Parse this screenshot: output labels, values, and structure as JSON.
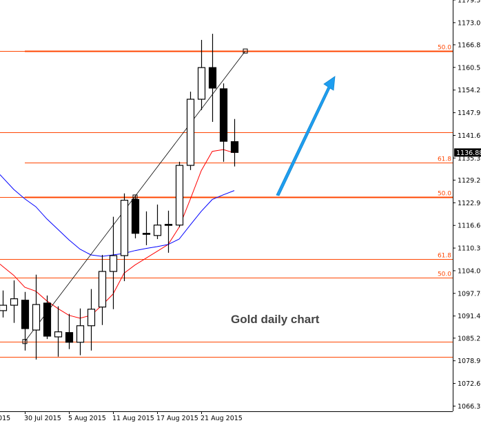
{
  "chart_data": {
    "type": "candlestick",
    "title": "",
    "annotation": "Gold daily chart",
    "colors": {
      "bull_body": "#ffffff",
      "bear_body": "#000000",
      "outline": "#000000",
      "ma_fast": "#ff0000",
      "ma_slow": "#0000ff",
      "levels": "#ff4500",
      "trendline": "#000000",
      "arrow": "#1e9ef0",
      "price_tag_bg": "#000000"
    },
    "ylim": [
      1064.9,
      1179.3
    ],
    "y_ticks": [
      "1179.30",
      "1173.00",
      "1166.85",
      "1160.55",
      "1154.25",
      "1147.95",
      "1141.65",
      "1135.35",
      "1129.20",
      "1122.90",
      "1116.60",
      "1110.30",
      "1104.00",
      "1097.70",
      "1091.40",
      "1085.25",
      "1078.95",
      "1072.65",
      "1066.35"
    ],
    "x_ticks": [
      {
        "label": "2015",
        "date": "24 Jul 2015"
      },
      {
        "label": "30 Jul 2015",
        "date": "30 Jul 2015"
      },
      {
        "label": "5 Aug 2015",
        "date": "5 Aug 2015"
      },
      {
        "label": "11 Aug 2015",
        "date": "11 Aug 2015"
      },
      {
        "label": "17 Aug 2015",
        "date": "17 Aug 2015"
      },
      {
        "label": "21 Aug 2015",
        "date": "21 Aug 2015"
      }
    ],
    "current_price": "1136.88",
    "candles": [
      {
        "date": "28 Jul 2015",
        "o": 1092.9,
        "h": 1098.5,
        "l": 1091.0,
        "c": 1094.4
      },
      {
        "date": "29 Jul 2015",
        "o": 1094.4,
        "h": 1101.3,
        "l": 1089.5,
        "c": 1096.2
      },
      {
        "date": "30 Jul 2015",
        "o": 1095.8,
        "h": 1098.1,
        "l": 1081.8,
        "c": 1087.9
      },
      {
        "date": "31 Jul 2015",
        "o": 1087.5,
        "h": 1102.9,
        "l": 1079.3,
        "c": 1094.6
      },
      {
        "date": "3 Aug 2015",
        "o": 1095.0,
        "h": 1097.1,
        "l": 1085.0,
        "c": 1085.8
      },
      {
        "date": "4 Aug 2015",
        "o": 1085.6,
        "h": 1094.1,
        "l": 1080.1,
        "c": 1087.0
      },
      {
        "date": "5 Aug 2015",
        "o": 1086.8,
        "h": 1092.0,
        "l": 1082.2,
        "c": 1084.1
      },
      {
        "date": "6 Aug 2015",
        "o": 1084.1,
        "h": 1093.5,
        "l": 1080.5,
        "c": 1088.7
      },
      {
        "date": "7 Aug 2015",
        "o": 1088.7,
        "h": 1098.9,
        "l": 1081.8,
        "c": 1093.3
      },
      {
        "date": "10 Aug 2015",
        "o": 1093.9,
        "h": 1108.4,
        "l": 1088.9,
        "c": 1103.8
      },
      {
        "date": "11 Aug 2015",
        "o": 1103.8,
        "h": 1119.0,
        "l": 1093.3,
        "c": 1108.2
      },
      {
        "date": "12 Aug 2015",
        "o": 1108.2,
        "h": 1125.5,
        "l": 1101.1,
        "c": 1123.6
      },
      {
        "date": "13 Aug 2015",
        "o": 1123.8,
        "h": 1124.9,
        "l": 1113.0,
        "c": 1114.4
      },
      {
        "date": "14 Aug 2015",
        "o": 1114.4,
        "h": 1120.5,
        "l": 1111.1,
        "c": 1114.3
      },
      {
        "date": "17 Aug 2015",
        "o": 1113.8,
        "h": 1122.4,
        "l": 1112.8,
        "c": 1116.7
      },
      {
        "date": "18 Aug 2015",
        "o": 1116.9,
        "h": 1120.7,
        "l": 1109.0,
        "c": 1116.8
      },
      {
        "date": "19 Aug 2015",
        "o": 1116.7,
        "h": 1134.3,
        "l": 1116.1,
        "c": 1133.3
      },
      {
        "date": "20 Aug 2015",
        "o": 1133.3,
        "h": 1153.8,
        "l": 1132.0,
        "c": 1151.7
      },
      {
        "date": "21 Aug 2015",
        "o": 1151.7,
        "h": 1168.2,
        "l": 1148.7,
        "c": 1160.5
      },
      {
        "date": "24 Aug 2015",
        "o": 1160.5,
        "h": 1169.9,
        "l": 1145.4,
        "c": 1154.8
      },
      {
        "date": "25 Aug 2015",
        "o": 1154.6,
        "h": 1156.1,
        "l": 1134.3,
        "c": 1140.0
      },
      {
        "date": "26 Aug 2015",
        "o": 1139.9,
        "h": 1146.2,
        "l": 1133.0,
        "c": 1136.9
      }
    ],
    "series": [
      {
        "values": [
          1105.2,
          1102.7,
          1099.4,
          1098.3,
          1095.6,
          1093.5,
          1091.6,
          1090.8,
          1091.6,
          1094.4,
          1097.5,
          1103.3,
          1105.6,
          1107.5,
          1109.4,
          1111.3,
          1116.1,
          1123.8,
          1131.8,
          1137.2,
          1137.7,
          1136.8
        ],
        "color": "#ff0000"
      },
      {
        "values": [
          1129.9,
          1126.6,
          1124.0,
          1121.8,
          1118.4,
          1115.5,
          1112.6,
          1110.0,
          1108.4,
          1108.0,
          1108.4,
          1108.8,
          1109.6,
          1110.2,
          1110.7,
          1111.3,
          1112.8,
          1116.7,
          1120.5,
          1123.8,
          1125.1,
          1126.3
        ],
        "color": "#0000ff"
      }
    ],
    "levels": [
      {
        "price": 1165.1,
        "label": "50.0",
        "from": "30 Jul 2015",
        "thick": true
      },
      {
        "price": 1142.5,
        "label": "",
        "from": null,
        "thick": false
      },
      {
        "price": 1134.1,
        "label": "61.8",
        "from": "30 Jul 2015",
        "thick": false
      },
      {
        "price": 1124.5,
        "label": "50.0",
        "from": "30 Jul 2015",
        "thick": true
      },
      {
        "price": 1107.3,
        "label": "61.8",
        "from": null,
        "thick": false
      },
      {
        "price": 1102.1,
        "label": "50.0",
        "from": null,
        "thick": false
      },
      {
        "price": 1084.3,
        "label": "",
        "from": null,
        "thick": false
      },
      {
        "price": 1080.1,
        "label": "",
        "from": null,
        "thick": false
      }
    ],
    "trendline": {
      "from": {
        "date": "30 Jul 2015",
        "price": 1084.3
      },
      "mid": {
        "date": "13 Aug 2015",
        "price": 1124.5
      },
      "to": {
        "date": "27 Aug 2015",
        "price": 1165.1
      }
    }
  }
}
